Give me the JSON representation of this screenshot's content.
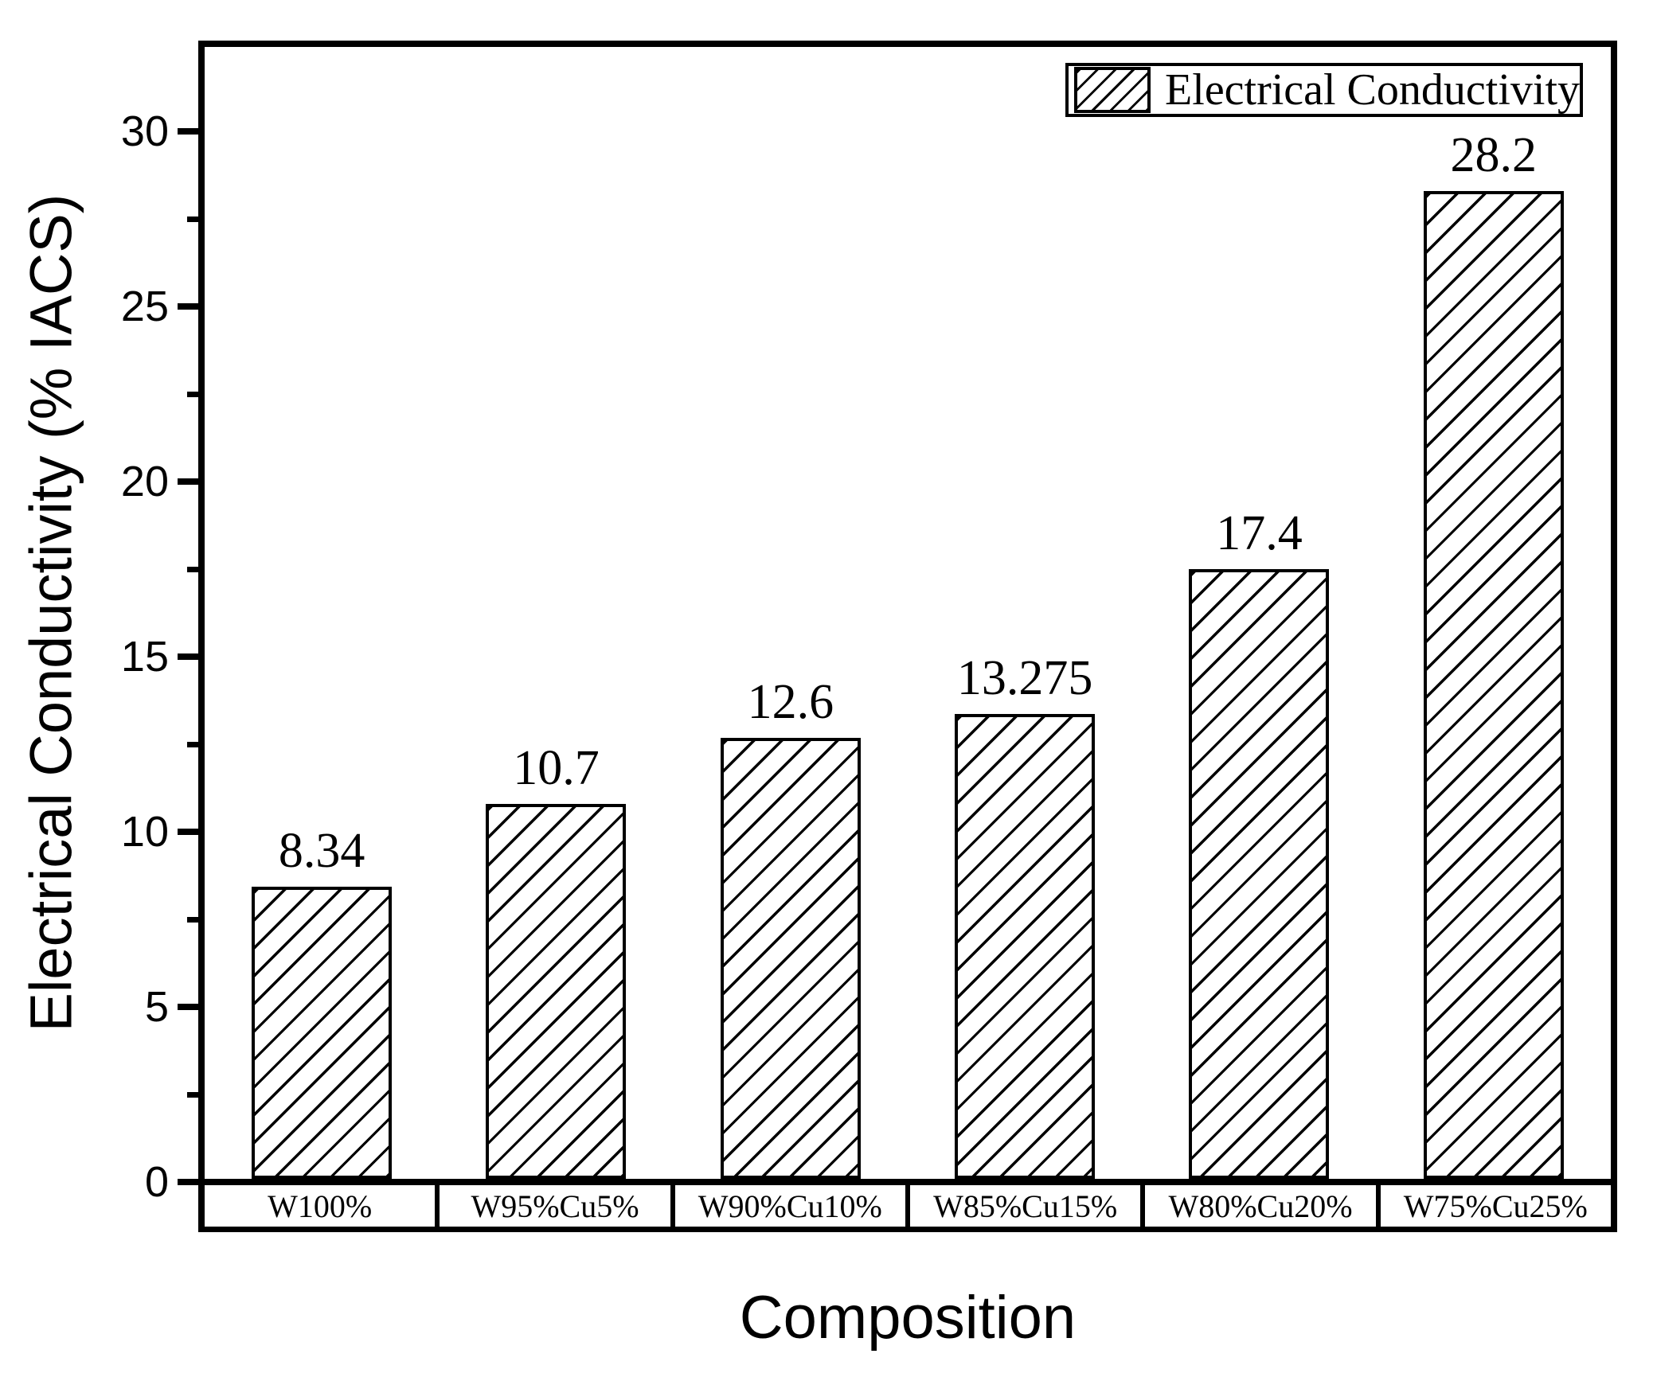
{
  "chart_data": {
    "type": "bar",
    "title": "",
    "xlabel": "Composition",
    "ylabel": "Electrical Conductivity (% IACS)",
    "categories": [
      "W100%",
      "W95%Cu5%",
      "W90%Cu10%",
      "W85%Cu15%",
      "W80%Cu20%",
      "W75%Cu25%"
    ],
    "values": [
      8.34,
      10.7,
      12.6,
      13.275,
      17.4,
      28.2
    ],
    "value_labels": [
      "8.34",
      "10.7",
      "12.6",
      "13.275",
      "17.4",
      "28.2"
    ],
    "ylim": [
      0,
      32.5
    ],
    "yticks_major": [
      0,
      5,
      10,
      15,
      20,
      25,
      30
    ],
    "ytick_labels": [
      "0",
      "5",
      "10",
      "15",
      "20",
      "25",
      "30"
    ],
    "yticks_minor": [
      2.5,
      7.5,
      12.5,
      17.5,
      22.5,
      27.5
    ],
    "grid": false,
    "legend": {
      "label": "Electrical Conductivity",
      "position": "top-right",
      "swatch": "diagonal-hatch"
    },
    "bar_style": {
      "fill": "#ffffff",
      "hatch": "diagonal-forward-slash",
      "hatch_color": "#000000",
      "border_color": "#000000"
    },
    "axis_color": "#000000",
    "background_color": "#ffffff"
  }
}
